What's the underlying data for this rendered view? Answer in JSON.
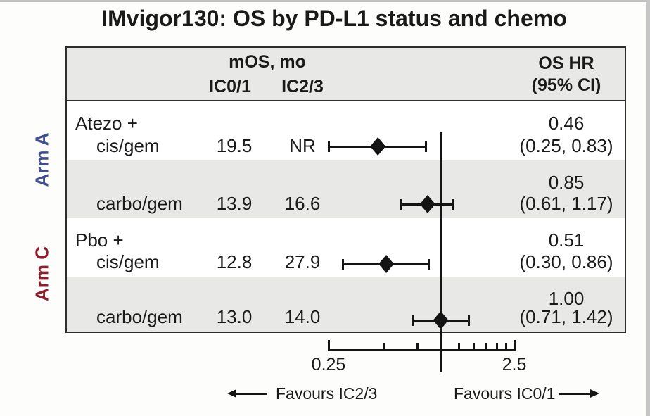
{
  "page": {
    "title": "IMvigor130: OS by PD-L1 status and chemo"
  },
  "table": {
    "header": {
      "mos_group": "mOS, mo",
      "ic01": "IC0/1",
      "ic23": "IC2/3",
      "hr_line1": "OS HR",
      "hr_line2": "(95% CI)"
    },
    "arm_labels": [
      {
        "label": "Arm A",
        "color": "#3e4e8e"
      },
      {
        "label": "Arm C",
        "color": "#8e1f2e"
      }
    ]
  },
  "chart_data": {
    "type": "scatter",
    "subtype": "forest-plot",
    "title": "IMvigor130: OS by PD-L1 status and chemo",
    "x_axis": {
      "scale": "log",
      "min": 0.25,
      "max": 2.5,
      "tick_step": 0.25,
      "min_label": "0.25",
      "max_label": "2.5",
      "reference_line": 1.0
    },
    "footer": {
      "left_arrow_label": "Favours IC2/3",
      "right_arrow_label": "Favours IC0/1"
    },
    "rows": [
      {
        "arm": "Arm A",
        "group": "Atezo +",
        "regimen": "cis/gem",
        "mos_ic01": "19.5",
        "mos_ic23": "NR",
        "hr": 0.46,
        "ci_low": 0.25,
        "ci_high": 0.83,
        "hr_label": "0.46",
        "ci_label": "(0.25, 0.83)",
        "shaded": false
      },
      {
        "arm": "Arm A",
        "group": "",
        "regimen": "carbo/gem",
        "mos_ic01": "13.9",
        "mos_ic23": "16.6",
        "hr": 0.85,
        "ci_low": 0.61,
        "ci_high": 1.17,
        "hr_label": "0.85",
        "ci_label": "(0.61, 1.17)",
        "shaded": true
      },
      {
        "arm": "Arm C",
        "group": "Pbo +",
        "regimen": "cis/gem",
        "mos_ic01": "12.8",
        "mos_ic23": "27.9",
        "hr": 0.51,
        "ci_low": 0.3,
        "ci_high": 0.86,
        "hr_label": "0.51",
        "ci_label": "(0.30, 0.86)",
        "shaded": false
      },
      {
        "arm": "Arm C",
        "group": "",
        "regimen": "carbo/gem",
        "mos_ic01": "13.0",
        "mos_ic23": "14.0",
        "hr": 1.0,
        "ci_low": 0.71,
        "ci_high": 1.42,
        "hr_label": "1.00",
        "ci_label": "(0.71, 1.42)",
        "shaded": true
      }
    ],
    "colors": {
      "marker": "#141414",
      "row_shade": "#e8e8e6",
      "arm_a": "#3e4e8e",
      "arm_c": "#8e1f2e"
    }
  }
}
